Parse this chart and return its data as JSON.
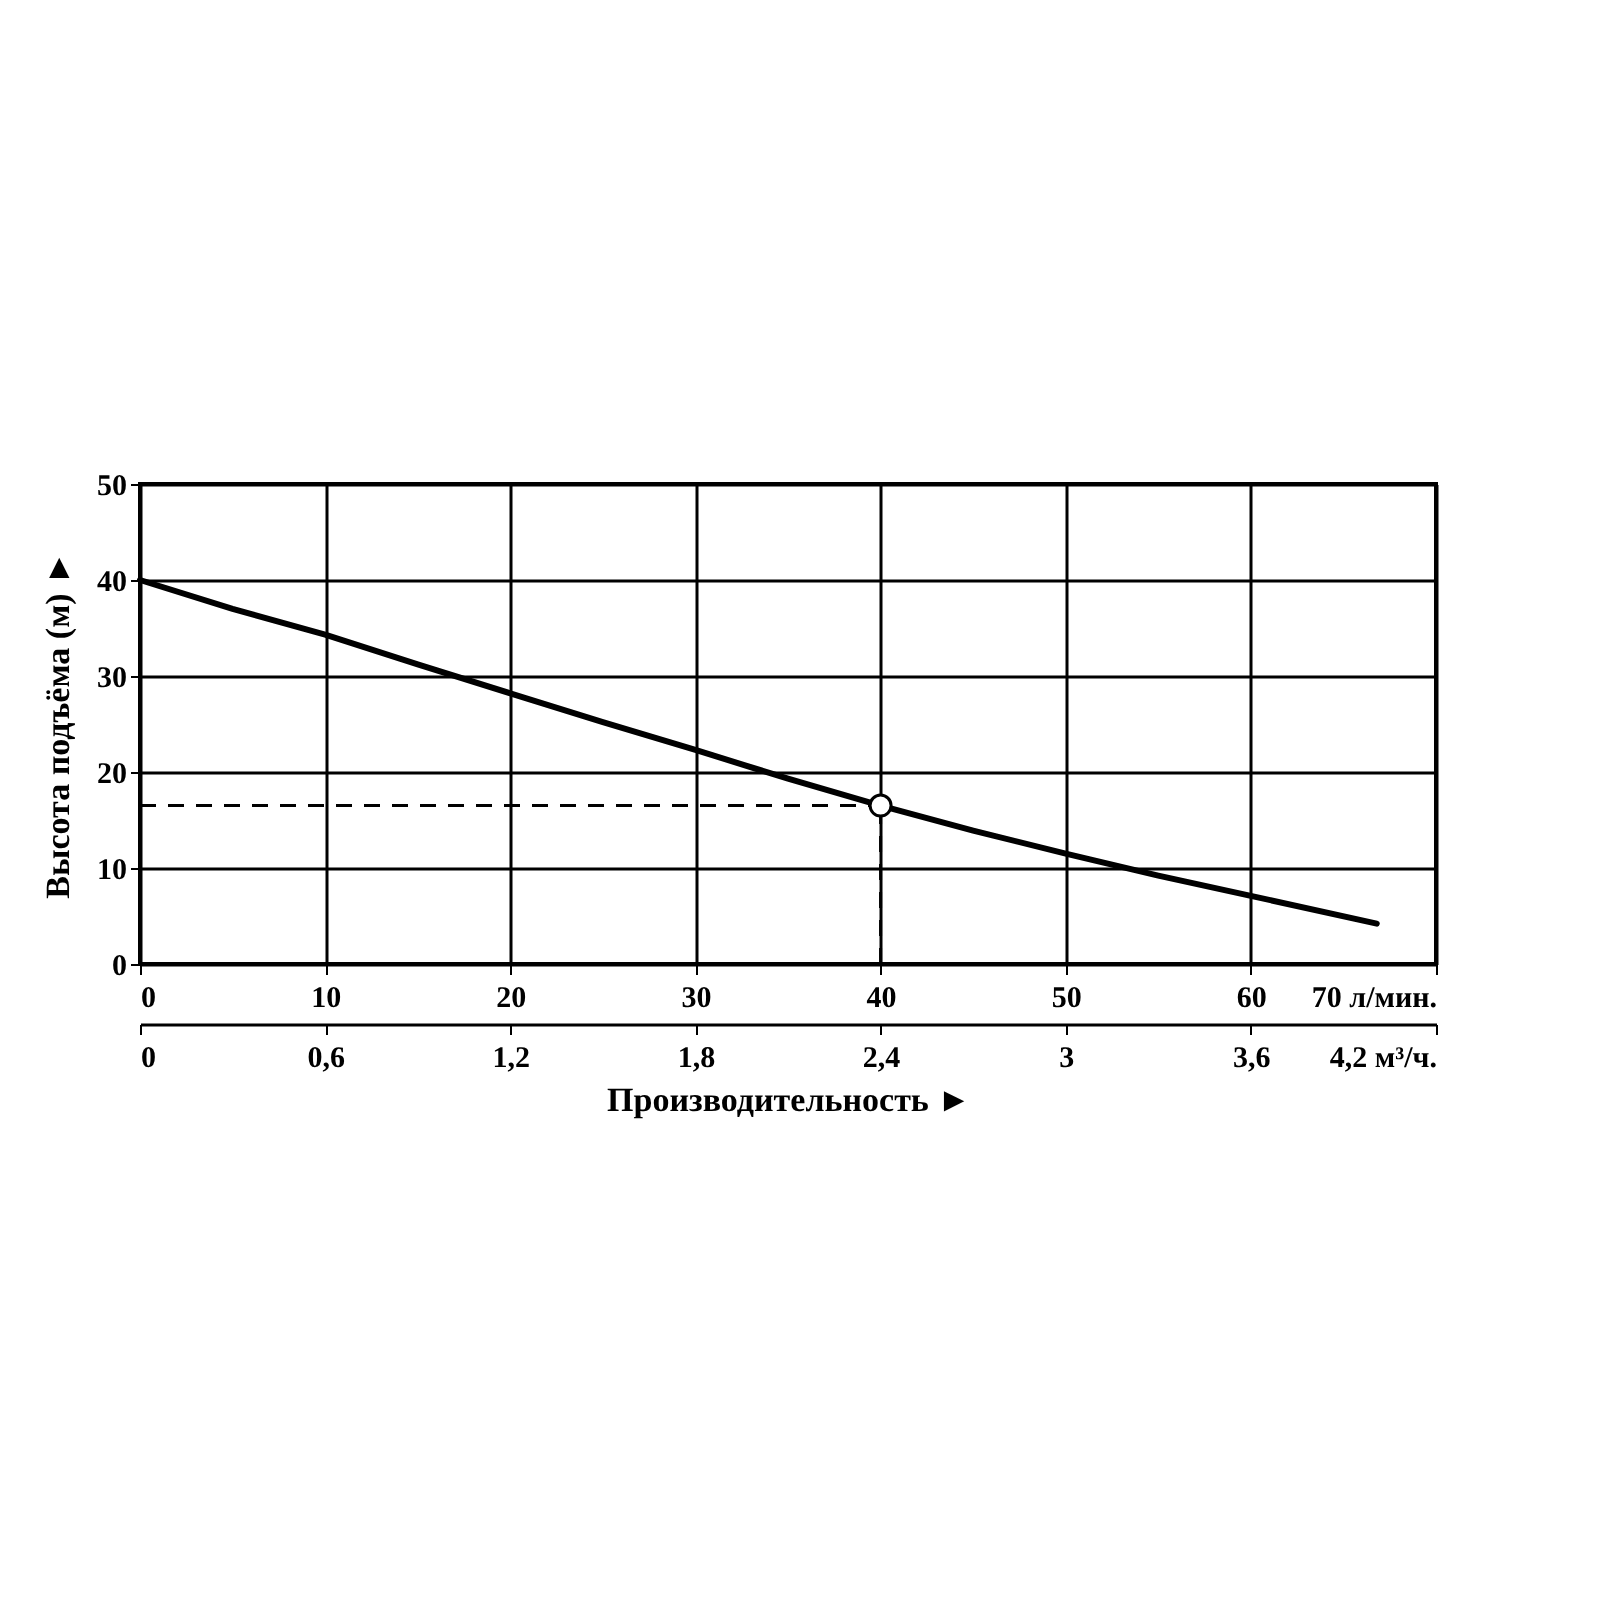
{
  "chart_data": {
    "type": "line",
    "xlabel": "Производительность ►",
    "ylabel": "Высота подъёма (м) ►",
    "xlim": [
      0,
      70
    ],
    "xticks": [
      0,
      10,
      20,
      30,
      40,
      50,
      60,
      {
        "value": 70,
        "label": "70 л/мин."
      }
    ],
    "x2lim": [
      0,
      4.2
    ],
    "x2ticks": [
      {
        "value": 0,
        "label": "0"
      },
      {
        "value": 0.6,
        "label": "0,6"
      },
      {
        "value": 1.2,
        "label": "1,2"
      },
      {
        "value": 1.8,
        "label": "1,8"
      },
      {
        "value": 2.4,
        "label": "2,4"
      },
      {
        "value": 3,
        "label": "3"
      },
      {
        "value": 3.6,
        "label": "3,6"
      },
      {
        "value": 4.2,
        "label": "4,2 м³/ч."
      }
    ],
    "ylim": [
      0,
      50
    ],
    "yticks": [
      0,
      10,
      20,
      30,
      40,
      50
    ],
    "grid": true,
    "series": [
      {
        "type": "line",
        "color": "#000000",
        "marker": "none",
        "line_style": "solid",
        "x": [
          0,
          5,
          10,
          15,
          20,
          25,
          30,
          35,
          40,
          45,
          50,
          55,
          60,
          66.8
        ],
        "values": [
          40,
          37,
          34.3,
          31.2,
          28.2,
          25.2,
          22.3,
          19.3,
          16.5,
          13.9,
          11.5,
          9.2,
          7.1,
          4.2
        ]
      },
      {
        "type": "scatter",
        "color": "#000000",
        "marker": "circle",
        "x": [
          40
        ],
        "values": [
          16.5
        ]
      }
    ],
    "ref_lines": [
      {
        "axis": "x",
        "value": 40,
        "line_style": "dashed"
      },
      {
        "axis": "y",
        "value": 16.5,
        "line_style": "dashed"
      }
    ]
  }
}
